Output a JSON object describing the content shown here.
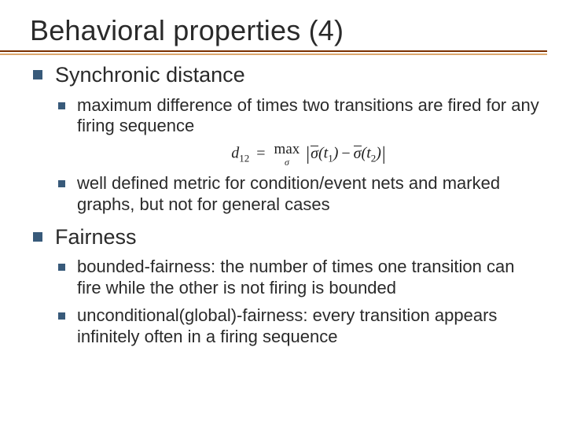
{
  "colors": {
    "bullet": "#385a7a",
    "rule_dark": "#7a2f00",
    "rule_light": "#dca86e",
    "text": "#2a2a2a",
    "background": "#ffffff"
  },
  "typography": {
    "title_fontsize": 36,
    "level1_fontsize": 27,
    "level2_fontsize": 22,
    "formula_fontsize": 20,
    "font_family": "Verdana"
  },
  "title": "Behavioral properties (4)",
  "items": [
    {
      "label": "Synchronic distance",
      "children": [
        {
          "label": "maximum difference of times two transitions are fired for any firing sequence"
        },
        {
          "label": "well defined metric for condition/event nets and marked graphs, but not for general cases"
        }
      ]
    },
    {
      "label": "Fairness",
      "children": [
        {
          "label": "bounded-fairness: the number of times one transition can fire while the other is not firing is bounded"
        },
        {
          "label": "unconditional(global)-fairness: every transition appears infinitely often in a firing sequence"
        }
      ]
    }
  ],
  "formula": {
    "lhs_var": "d",
    "lhs_sub": "12",
    "eq": "=",
    "max_label": "max",
    "max_sub": "σ",
    "sigma_bar": "σ",
    "t1": "t",
    "t1_sub": "1",
    "minus": "−",
    "t2": "t",
    "t2_sub": "2"
  }
}
